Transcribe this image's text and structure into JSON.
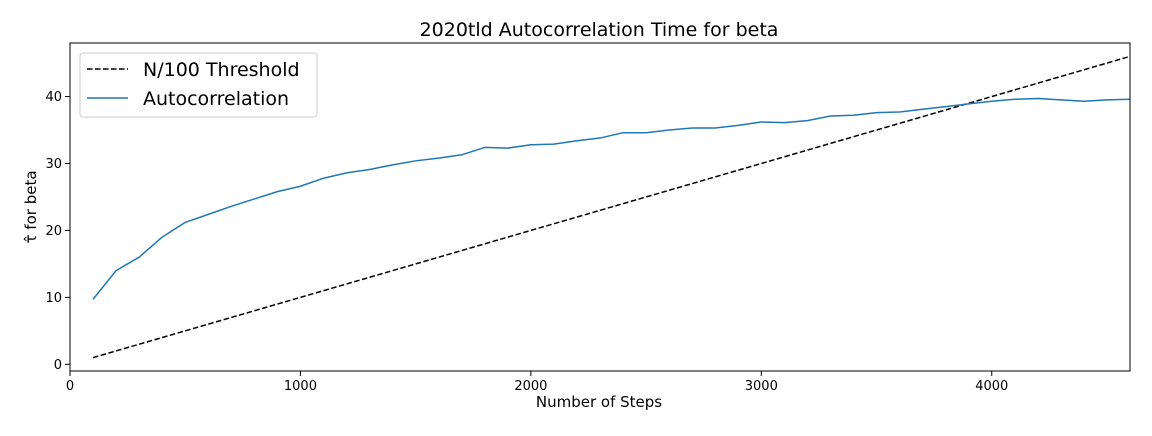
{
  "chart_data": {
    "type": "line",
    "title": "2020tld Autocorrelation Time for beta",
    "xlabel": "Number of Steps",
    "ylabel": "τ̂ for beta",
    "xlim": [
      0,
      4600
    ],
    "ylim": [
      -1,
      48
    ],
    "xticks": [
      0,
      1000,
      2000,
      3000,
      4000
    ],
    "yticks": [
      0,
      10,
      20,
      30,
      40
    ],
    "grid": false,
    "legend_position": "top-left",
    "series": [
      {
        "name": "N/100 Threshold",
        "color": "#000000",
        "style": "dashed",
        "x": [
          100,
          4600
        ],
        "y": [
          1,
          46
        ]
      },
      {
        "name": "Autocorrelation",
        "color": "#1f77b4",
        "style": "solid",
        "x": [
          100,
          200,
          300,
          400,
          500,
          600,
          700,
          800,
          900,
          1000,
          1100,
          1200,
          1300,
          1400,
          1500,
          1600,
          1700,
          1800,
          1900,
          2000,
          2100,
          2200,
          2300,
          2400,
          2500,
          2600,
          2700,
          2800,
          2900,
          3000,
          3100,
          3200,
          3300,
          3400,
          3500,
          3600,
          3700,
          3800,
          3900,
          4000,
          4100,
          4200,
          4300,
          4400,
          4500,
          4600
        ],
        "y": [
          9.7,
          14.0,
          16.0,
          19.0,
          21.2,
          22.4,
          23.6,
          24.7,
          25.8,
          26.6,
          27.8,
          28.6,
          29.1,
          29.8,
          30.4,
          30.8,
          31.3,
          32.4,
          32.3,
          32.8,
          32.9,
          33.4,
          33.8,
          34.6,
          34.6,
          35.0,
          35.3,
          35.3,
          35.7,
          36.2,
          36.1,
          36.4,
          37.1,
          37.2,
          37.6,
          37.7,
          38.1,
          38.5,
          38.9,
          39.3,
          39.6,
          39.7,
          39.5,
          39.3,
          39.5,
          39.6
        ]
      }
    ]
  }
}
